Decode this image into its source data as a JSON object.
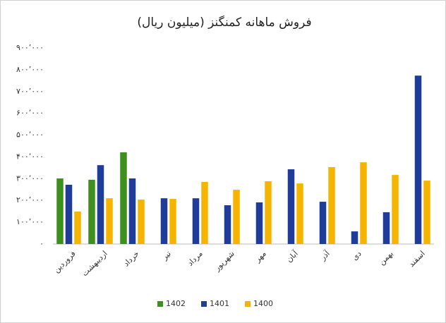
{
  "chart_data": {
    "type": "bar",
    "title": "فروش ماهانه کمنگنز (میلیون ریال)",
    "categories": [
      "فروردین",
      "اردیبهشت",
      "خرداد",
      "تیر",
      "مرداد",
      "شهریور",
      "مهر",
      "آبان",
      "آذر",
      "دی",
      "بهمن",
      "اسفند"
    ],
    "series": [
      {
        "name": "1402",
        "color": "#3f8f1f",
        "values": [
          301000,
          295000,
          421000,
          null,
          null,
          null,
          null,
          null,
          null,
          null,
          null,
          null
        ]
      },
      {
        "name": "1401",
        "color": "#1f3c99",
        "values": [
          272000,
          362000,
          301000,
          210000,
          210000,
          178000,
          191000,
          343000,
          194000,
          58000,
          146000,
          773000
        ]
      },
      {
        "name": "1400",
        "color": "#f5b400",
        "values": [
          149000,
          210000,
          204000,
          207000,
          285000,
          249000,
          288000,
          278000,
          353000,
          375000,
          317000,
          291000
        ]
      }
    ],
    "ylim": [
      0,
      900000
    ],
    "yticks": [
      {
        "value": 0,
        "label": "۰"
      },
      {
        "value": 100000,
        "label": "۱۰۰٬۰۰۰"
      },
      {
        "value": 200000,
        "label": "۲۰۰٬۰۰۰"
      },
      {
        "value": 300000,
        "label": "۳۰۰٬۰۰۰"
      },
      {
        "value": 400000,
        "label": "۴۰۰٬۰۰۰"
      },
      {
        "value": 500000,
        "label": "۵۰۰٬۰۰۰"
      },
      {
        "value": 600000,
        "label": "۶۰۰٬۰۰۰"
      },
      {
        "value": 700000,
        "label": "۷۰۰٬۰۰۰"
      },
      {
        "value": 800000,
        "label": "۸۰۰٬۰۰۰"
      },
      {
        "value": 900000,
        "label": "۹۰۰٬۰۰۰"
      }
    ],
    "grid": false,
    "legend": "bottom"
  }
}
